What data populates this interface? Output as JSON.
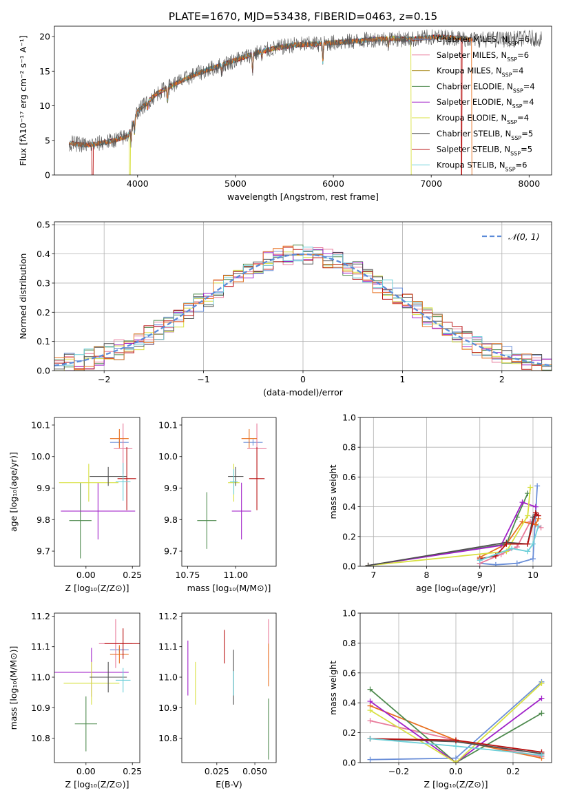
{
  "figure_title": "PLATE=1670, MJD=53438, FIBERID=0463, z=0.15",
  "colors": {
    "Chabrier MILES": "#6b8fd8",
    "Salpeter MILES": "#e87a9a",
    "Kroupa MILES": "#a8881a",
    "Chabrier ELODIE": "#4e8a4e",
    "Salpeter ELODIE": "#a020c8",
    "Kroupa ELODIE": "#d8e040",
    "Chabrier STELIB": "#505050",
    "Salpeter STELIB": "#b81010",
    "Kroupa STELIB": "#6ccfd8",
    "orange": "#e87020",
    "normal_fit": "#5b8ad8"
  },
  "chart_data": [
    {
      "id": "spectrum",
      "type": "line",
      "title": "PLATE=1670, MJD=53438, FIBERID=0463, z=0.15",
      "xlabel": "wavelength [Angstrom, rest frame]",
      "ylabel": "Flux [fλ10⁻¹⁷ erg cm⁻² s⁻¹ A⁻¹]",
      "xlim": [
        3150,
        8230
      ],
      "ylim": [
        0,
        21.5
      ],
      "xticks": [
        4000,
        5000,
        6000,
        7000,
        8000
      ],
      "yticks": [
        0,
        5,
        10,
        15,
        20
      ],
      "legend_position": "top-right",
      "series": [
        {
          "name": "Chabrier MILES, N_SSP=6"
        },
        {
          "name": "Salpeter MILES, N_SSP=6"
        },
        {
          "name": "Kroupa MILES, N_SSP=4"
        },
        {
          "name": "Chabrier ELODIE, N_SSP=4"
        },
        {
          "name": "Salpeter ELODIE, N_SSP=4"
        },
        {
          "name": "Kroupa ELODIE, N_SSP=4"
        },
        {
          "name": "Chabrier STELIB, N_SSP=5"
        },
        {
          "name": "Salpeter STELIB, N_SSP=5"
        },
        {
          "name": "Kroupa STELIB, N_SSP=6"
        }
      ],
      "continuum": {
        "x": [
          3300,
          3500,
          3700,
          3900,
          4000,
          4200,
          4400,
          4600,
          4800,
          5000,
          5200,
          5400,
          5600,
          5800,
          6000,
          6200,
          6400,
          6600,
          6800,
          7000,
          7200,
          7400,
          7600,
          7800,
          8000,
          8100
        ],
        "y": [
          4.6,
          4.3,
          4.8,
          5.6,
          9.2,
          11.8,
          13.3,
          14.6,
          15.6,
          16.6,
          17.6,
          18.3,
          18.8,
          18.9,
          19.1,
          19.3,
          19.6,
          19.7,
          19.6,
          19.9,
          19.9,
          19.6,
          19.6,
          19.6,
          19.8,
          19.7
        ]
      },
      "absorption_lines": [
        {
          "x": 3934,
          "depth": 2.0
        },
        {
          "x": 3969,
          "depth": 2.0
        },
        {
          "x": 4102,
          "depth": 1.0
        },
        {
          "x": 4304,
          "depth": 1.8
        },
        {
          "x": 4861,
          "depth": 1.2
        },
        {
          "x": 5175,
          "depth": 2.5
        },
        {
          "x": 5270,
          "depth": 1.0
        },
        {
          "x": 5893,
          "depth": 2.8
        },
        {
          "x": 6563,
          "depth": 1.0
        }
      ],
      "model_dropouts": [
        {
          "x": 3540,
          "series": "Salpeter STELIB"
        },
        {
          "x": 3920,
          "series": "Kroupa ELODIE"
        },
        {
          "x": 6800,
          "series": "Kroupa ELODIE"
        },
        {
          "x": 7310,
          "series": "Salpeter STELIB"
        },
        {
          "x": 7420,
          "series": "orange"
        }
      ]
    },
    {
      "id": "residual_histogram",
      "type": "histogram",
      "xlabel": "(data-model)/error",
      "ylabel": "Normed distribution",
      "xlim": [
        -2.5,
        2.5
      ],
      "ylim": [
        0,
        0.51
      ],
      "xticks": [
        -2,
        -1,
        0,
        1,
        2
      ],
      "xticklabels": [
        "−2",
        "−1",
        "0",
        "1",
        "2"
      ],
      "yticks": [
        0.0,
        0.1,
        0.2,
        0.3,
        0.4,
        0.5
      ],
      "bin_width": 0.1,
      "legend": "𝒩(0, 1)",
      "legend_position": "top-right",
      "fit": {
        "name": "𝒩(0, 1)",
        "mean": 0,
        "sigma": 1
      }
    },
    {
      "id": "age_vs_Z",
      "type": "errorbar",
      "xlabel": "Z [log₁₀(Z/Z⊙)]",
      "ylabel": "age  [log₁₀(age/yr)]",
      "xlim": [
        -0.17,
        0.29
      ],
      "ylim": [
        9.652,
        10.124
      ],
      "xticks": [
        0.0,
        0.25
      ],
      "xticklabels": [
        "0.00",
        "0.25"
      ],
      "yticks": [
        9.7,
        9.8,
        9.9,
        10.0,
        10.1
      ],
      "points": [
        {
          "series": "Chabrier MILES",
          "x": 0.18,
          "xerr": 0.05,
          "y": 10.045,
          "yerr": 0.01
        },
        {
          "series": "Salpeter MILES",
          "x": 0.2,
          "xerr": 0.05,
          "y": 10.025,
          "yerr": 0.08
        },
        {
          "series": "orange",
          "x": 0.18,
          "xerr": 0.05,
          "y": 10.057,
          "yerr": 0.03
        },
        {
          "series": "Chabrier ELODIE",
          "x": -0.03,
          "xerr": 0.06,
          "y": 9.797,
          "yerr": 0.12
        },
        {
          "series": "Salpeter ELODIE",
          "x": 0.065,
          "xerr": 0.2,
          "y": 9.827,
          "yerr": 0.09
        },
        {
          "series": "Kroupa ELODIE",
          "x": 0.015,
          "xerr": 0.16,
          "y": 9.917,
          "yerr": 0.06
        },
        {
          "series": "Chabrier STELIB",
          "x": 0.12,
          "xerr": 0.1,
          "y": 9.937,
          "yerr": 0.03
        },
        {
          "series": "Salpeter STELIB",
          "x": 0.22,
          "xerr": 0.05,
          "y": 9.93,
          "yerr": 0.1
        },
        {
          "series": "Kroupa STELIB",
          "x": 0.2,
          "xerr": 0.04,
          "y": 9.92,
          "yerr": 0.06
        }
      ]
    },
    {
      "id": "age_vs_mass",
      "type": "errorbar",
      "xlabel": "mass [log₁₀(M/M⊙)]",
      "ylabel": "",
      "xlim": [
        10.72,
        11.21
      ],
      "ylim": [
        9.652,
        10.124
      ],
      "xticks": [
        10.75,
        11.0
      ],
      "xticklabels": [
        "10.75",
        "11.00"
      ],
      "yticks": [
        9.7,
        9.8,
        9.9,
        10.0,
        10.1
      ],
      "points": [
        {
          "series": "Chabrier MILES",
          "x": 11.09,
          "xerr": 0.05,
          "y": 10.045,
          "yerr": 0.01
        },
        {
          "series": "Salpeter MILES",
          "x": 11.11,
          "xerr": 0.05,
          "y": 10.025,
          "yerr": 0.08
        },
        {
          "series": "orange",
          "x": 11.07,
          "xerr": 0.04,
          "y": 10.057,
          "yerr": 0.03
        },
        {
          "series": "Chabrier ELODIE",
          "x": 10.85,
          "xerr": 0.05,
          "y": 9.797,
          "yerr": 0.09
        },
        {
          "series": "Salpeter ELODIE",
          "x": 11.03,
          "xerr": 0.05,
          "y": 9.827,
          "yerr": 0.09
        },
        {
          "series": "Kroupa ELODIE",
          "x": 10.99,
          "xerr": 0.03,
          "y": 9.917,
          "yerr": 0.06
        },
        {
          "series": "Chabrier STELIB",
          "x": 11.0,
          "xerr": 0.04,
          "y": 9.937,
          "yerr": 0.03
        },
        {
          "series": "Salpeter STELIB",
          "x": 11.11,
          "xerr": 0.04,
          "y": 9.93,
          "yerr": 0.1
        },
        {
          "series": "Kroupa STELIB",
          "x": 10.99,
          "xerr": 0.02,
          "y": 9.92,
          "yerr": 0.04
        }
      ]
    },
    {
      "id": "mass_weight_vs_age",
      "type": "line",
      "xlabel": "age  [log₁₀(age/yr)]",
      "ylabel": "mass weight",
      "xlim": [
        6.75,
        10.35
      ],
      "ylim": [
        0,
        1
      ],
      "xticks": [
        7,
        8,
        9,
        10
      ],
      "yticks": [
        0.0,
        0.2,
        0.4,
        0.6,
        0.8,
        1.0
      ],
      "series": [
        {
          "series": "Chabrier MILES",
          "x": [
            9.0,
            9.3,
            9.7,
            10.0,
            10.08
          ],
          "y": [
            0.02,
            0.01,
            0.02,
            0.05,
            0.54
          ]
        },
        {
          "series": "Salpeter MILES",
          "x": [
            9.0,
            9.4,
            9.7,
            9.95,
            10.15
          ],
          "y": [
            0.02,
            0.08,
            0.13,
            0.3,
            0.26
          ]
        },
        {
          "series": "orange",
          "x": [
            9.0,
            9.5,
            9.8,
            10.05,
            10.1
          ],
          "y": [
            0.06,
            0.15,
            0.3,
            0.28,
            0.32
          ]
        },
        {
          "series": "Chabrier ELODIE",
          "x": [
            6.9,
            9.5,
            9.7,
            9.9
          ],
          "y": [
            0.005,
            0.15,
            0.33,
            0.49
          ]
        },
        {
          "series": "Salpeter ELODIE",
          "x": [
            6.9,
            9.4,
            9.8,
            10.05
          ],
          "y": [
            0.005,
            0.14,
            0.43,
            0.4
          ]
        },
        {
          "series": "Kroupa ELODIE",
          "x": [
            6.9,
            9.5,
            9.9,
            9.95
          ],
          "y": [
            0.005,
            0.1,
            0.34,
            0.53
          ]
        },
        {
          "series": "Chabrier STELIB",
          "x": [
            6.9,
            9.5,
            9.9,
            10.0,
            10.06
          ],
          "y": [
            0.005,
            0.16,
            0.15,
            0.33,
            0.35
          ]
        },
        {
          "series": "Salpeter STELIB",
          "x": [
            9.0,
            9.3,
            9.5,
            9.9,
            10.05,
            10.1
          ],
          "y": [
            0.05,
            0.07,
            0.15,
            0.15,
            0.36,
            0.34
          ]
        },
        {
          "series": "Kroupa STELIB",
          "x": [
            9.0,
            9.6,
            9.9,
            10.0,
            10.1
          ],
          "y": [
            0.04,
            0.12,
            0.1,
            0.15,
            0.27
          ]
        }
      ]
    },
    {
      "id": "mass_vs_Z",
      "type": "errorbar",
      "xlabel": "Z [log₁₀(Z/Z⊙)]",
      "ylabel": "mass [log₁₀(M/M⊙)]",
      "xlim": [
        -0.17,
        0.29
      ],
      "ylim": [
        10.72,
        11.21
      ],
      "xticks": [
        0.0,
        0.25
      ],
      "xticklabels": [
        "0.00",
        "0.25"
      ],
      "yticks": [
        10.8,
        10.9,
        11.0,
        11.1,
        11.2
      ],
      "points": [
        {
          "series": "Chabrier MILES",
          "x": 0.18,
          "xerr": 0.05,
          "y": 11.09,
          "yerr": 0.01
        },
        {
          "series": "Salpeter MILES",
          "x": 0.16,
          "xerr": 0.09,
          "y": 11.11,
          "yerr": 0.08
        },
        {
          "series": "orange",
          "x": 0.18,
          "xerr": 0.05,
          "y": 11.075,
          "yerr": 0.03
        },
        {
          "series": "Chabrier ELODIE",
          "x": 0.0,
          "xerr": 0.06,
          "y": 10.847,
          "yerr": 0.09
        },
        {
          "series": "Salpeter ELODIE",
          "x": 0.03,
          "xerr": 0.2,
          "y": 11.016,
          "yerr": 0.08
        },
        {
          "series": "Kroupa ELODIE",
          "x": 0.03,
          "xerr": 0.15,
          "y": 10.98,
          "yerr": 0.07
        },
        {
          "series": "Chabrier STELIB",
          "x": 0.12,
          "xerr": 0.1,
          "y": 11.0,
          "yerr": 0.05
        },
        {
          "series": "Salpeter STELIB",
          "x": 0.2,
          "xerr": 0.1,
          "y": 11.11,
          "yerr": 0.05
        },
        {
          "series": "Kroupa STELIB",
          "x": 0.2,
          "xerr": 0.04,
          "y": 10.99,
          "yerr": 0.04
        }
      ]
    },
    {
      "id": "mass_vs_EBV",
      "type": "errorbar",
      "xlabel": "E(B-V)",
      "ylabel": "",
      "xlim": [
        0.002,
        0.064
      ],
      "ylim": [
        10.72,
        11.21
      ],
      "xticks": [
        0.025,
        0.05
      ],
      "xticklabels": [
        "0.025",
        "0.050"
      ],
      "yticks": [
        10.8,
        10.9,
        11.0,
        11.1,
        11.2
      ],
      "points": [
        {
          "series": "Salpeter ELODIE",
          "x": 0.006,
          "xerr": 0,
          "y": 11.03,
          "yerr": 0.09
        },
        {
          "series": "Kroupa ELODIE",
          "x": 0.011,
          "xerr": 0,
          "y": 10.98,
          "yerr": 0.07
        },
        {
          "series": "Salpeter STELIB",
          "x": 0.03,
          "xerr": 0,
          "y": 11.1,
          "yerr": 0.055
        },
        {
          "series": "Chabrier STELIB",
          "x": 0.036,
          "xerr": 0,
          "y": 11.0,
          "yerr": 0.09
        },
        {
          "series": "Kroupa STELIB",
          "x": 0.036,
          "xerr": 0,
          "y": 10.98,
          "yerr": 0.04
        },
        {
          "series": "Salpeter MILES",
          "x": 0.059,
          "xerr": 0,
          "y": 11.11,
          "yerr": 0.08
        },
        {
          "series": "orange",
          "x": 0.059,
          "xerr": 0,
          "y": 11.04,
          "yerr": 0.07
        },
        {
          "series": "Chabrier ELODIE",
          "x": 0.059,
          "xerr": 0,
          "y": 10.83,
          "yerr": 0.1
        }
      ]
    },
    {
      "id": "mass_weight_vs_Z",
      "type": "line",
      "xlabel": "Z [log₁₀(Z/Z⊙)]",
      "ylabel": "mass weight",
      "xlim": [
        -0.335,
        0.335
      ],
      "ylim": [
        0,
        1
      ],
      "xticks": [
        -0.2,
        0.0,
        0.2
      ],
      "xticklabels": [
        "−0.2",
        "0.0",
        "0.2"
      ],
      "yticks": [
        0.0,
        0.2,
        0.4,
        0.6,
        0.8,
        1.0
      ],
      "series": [
        {
          "series": "Chabrier MILES",
          "x": [
            -0.3,
            0.0,
            0.3
          ],
          "y": [
            0.02,
            0.03,
            0.54
          ]
        },
        {
          "series": "Salpeter MILES",
          "x": [
            -0.3,
            0.0,
            0.3
          ],
          "y": [
            0.28,
            0.15,
            0.04
          ]
        },
        {
          "series": "orange",
          "x": [
            -0.3,
            0.0,
            0.3
          ],
          "y": [
            0.38,
            0.15,
            0.03
          ]
        },
        {
          "series": "Chabrier ELODIE",
          "x": [
            -0.3,
            0.0,
            0.3
          ],
          "y": [
            0.49,
            0.0,
            0.33
          ]
        },
        {
          "series": "Salpeter ELODIE",
          "x": [
            -0.3,
            0.0,
            0.3
          ],
          "y": [
            0.41,
            0.0,
            0.43
          ]
        },
        {
          "series": "Kroupa ELODIE",
          "x": [
            -0.3,
            0.0,
            0.3
          ],
          "y": [
            0.35,
            0.0,
            0.53
          ]
        },
        {
          "series": "Chabrier STELIB",
          "x": [
            -0.3,
            0.0,
            0.3
          ],
          "y": [
            0.16,
            0.14,
            0.06
          ]
        },
        {
          "series": "Salpeter STELIB",
          "x": [
            -0.3,
            0.0,
            0.3
          ],
          "y": [
            0.16,
            0.15,
            0.07
          ]
        },
        {
          "series": "Kroupa STELIB",
          "x": [
            -0.3,
            0.0,
            0.3
          ],
          "y": [
            0.16,
            0.11,
            0.05
          ]
        }
      ]
    }
  ]
}
